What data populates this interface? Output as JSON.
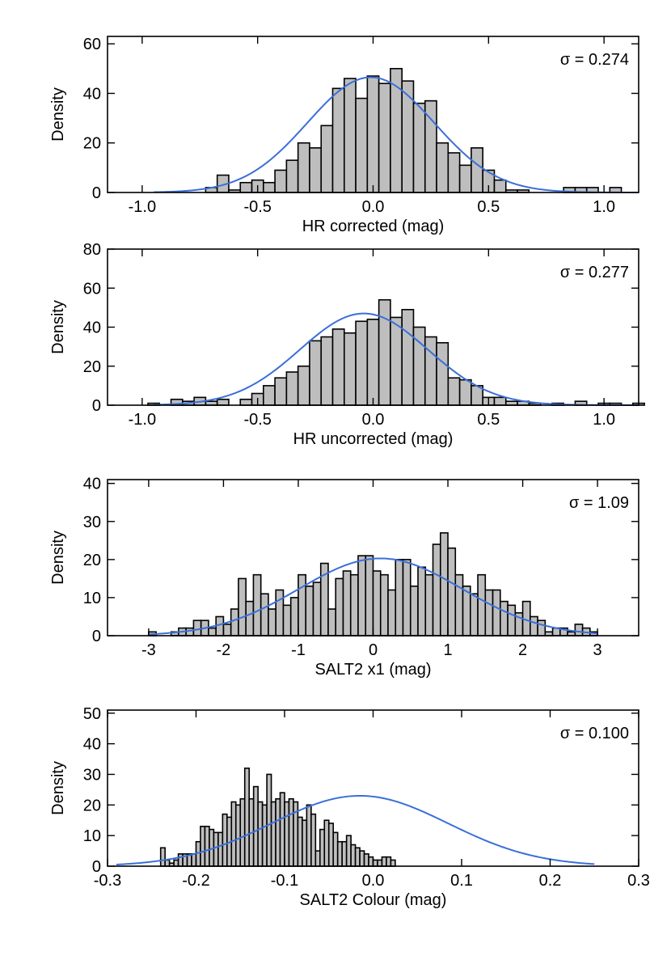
{
  "colors": {
    "bar_fill": "#bebebe",
    "bar_stroke": "#000000",
    "fit_line": "#3b6fd8"
  },
  "chart_data": [
    {
      "type": "bar",
      "xlabel": "HR corrected (mag)",
      "ylabel": "Density",
      "annotation": "σ = 0.274",
      "xlim": [
        -1.15,
        1.15
      ],
      "ylim": [
        0,
        63
      ],
      "xticks": [
        -1.0,
        -0.5,
        0.0,
        0.5,
        1.0
      ],
      "xtick_labels": [
        "-1.0",
        "-0.5",
        "0.0",
        "0.5",
        "1.0"
      ],
      "yticks": [
        0,
        20,
        40,
        60
      ],
      "ytick_labels": [
        "0",
        "20",
        "40",
        "60"
      ],
      "bin_start": -0.725,
      "bin_width": 0.05,
      "values": [
        2,
        7,
        1,
        4,
        5,
        4,
        9,
        13,
        20,
        18,
        27,
        42,
        46,
        38,
        47,
        44,
        50,
        45,
        36,
        37,
        20,
        16,
        11,
        18,
        9,
        5,
        1,
        1,
        0,
        0,
        0,
        2,
        2,
        2,
        0,
        2
      ],
      "fit": {
        "mean": -0.01,
        "sigma": 0.274,
        "peak": 46.5,
        "range": [
          -0.95,
          1.15
        ]
      }
    },
    {
      "type": "bar",
      "xlabel": "HR uncorrected (mag)",
      "ylabel": "Density",
      "annotation": "σ = 0.277",
      "xlim": [
        -1.15,
        1.15
      ],
      "ylim": [
        0,
        80
      ],
      "xticks": [
        -1.0,
        -0.5,
        0.0,
        0.5,
        1.0
      ],
      "xtick_labels": [
        "-1.0",
        "-0.5",
        "0.0",
        "0.5",
        "1.0"
      ],
      "yticks": [
        0,
        20,
        40,
        60,
        80
      ],
      "ytick_labels": [
        "0",
        "20",
        "40",
        "60",
        "80"
      ],
      "bin_start": -0.975,
      "bin_width": 0.05,
      "values": [
        1,
        0,
        3,
        2,
        4,
        2,
        3,
        0,
        3,
        6,
        10,
        14,
        17,
        20,
        33,
        35,
        39,
        37,
        43,
        44,
        54,
        45,
        49,
        40,
        35,
        32,
        14,
        13,
        10,
        4,
        4,
        2,
        2,
        1,
        0,
        1,
        0,
        2,
        0,
        1,
        1,
        0,
        1
      ],
      "fit": {
        "mean": -0.04,
        "sigma": 0.277,
        "peak": 47,
        "range": [
          -0.95,
          1.15
        ]
      }
    },
    {
      "type": "bar",
      "xlabel": "SALT2 x1 (mag)",
      "ylabel": "Density",
      "annotation": "σ =  1.09",
      "xlim": [
        -3.55,
        3.55
      ],
      "ylim": [
        0,
        41
      ],
      "xticks": [
        -3,
        -2,
        -1,
        0,
        1,
        2,
        3
      ],
      "xtick_labels": [
        "-3",
        "-2",
        "-1",
        "0",
        "1",
        "2",
        "3"
      ],
      "yticks": [
        0,
        10,
        20,
        30,
        40
      ],
      "ytick_labels": [
        "0",
        "10",
        "20",
        "30",
        "40"
      ],
      "bin_start": -3.0,
      "bin_width": 0.1,
      "values": [
        1,
        0,
        0,
        1,
        2,
        2,
        4,
        4,
        2,
        5,
        3,
        7,
        15,
        9,
        16,
        11,
        7,
        12,
        8,
        10,
        16,
        13,
        14,
        19,
        7,
        15,
        17,
        16,
        21,
        21,
        17,
        16,
        12,
        20,
        20,
        13,
        18,
        16,
        24,
        27,
        23,
        16,
        13,
        11,
        16,
        12,
        12,
        9,
        8,
        6,
        9,
        5,
        4,
        1,
        2,
        2,
        1,
        3,
        2,
        1
      ],
      "fit": {
        "mean": 0.1,
        "sigma": 1.09,
        "peak": 20.3,
        "range": [
          -3.0,
          3.0
        ]
      }
    },
    {
      "type": "bar",
      "xlabel": "SALT2 Colour (mag)",
      "ylabel": "Density",
      "annotation": "σ  = 0.100",
      "xlim": [
        -0.3,
        0.3
      ],
      "ylim": [
        0,
        51
      ],
      "xticks": [
        -0.3,
        -0.2,
        -0.1,
        0.0,
        0.1,
        0.2,
        0.3
      ],
      "xtick_labels": [
        "-0.3",
        "-0.2",
        "-0.1",
        "0.0",
        "0.1",
        "0.2",
        "0.3"
      ],
      "yticks": [
        0,
        10,
        20,
        30,
        40,
        50
      ],
      "ytick_labels": [
        "0",
        "10",
        "20",
        "30",
        "40",
        "50"
      ],
      "bin_start": -0.24,
      "bin_width": 0.005,
      "values": [
        6,
        2,
        1,
        2,
        4,
        4,
        4,
        4,
        8,
        13,
        13,
        12,
        11,
        11,
        17,
        16,
        21,
        20,
        22,
        32,
        22,
        26,
        21,
        20,
        30,
        21,
        22,
        24,
        21,
        22,
        21,
        16,
        15,
        20,
        17,
        5,
        12,
        15,
        14,
        11,
        8,
        8,
        10,
        7,
        6,
        5,
        4,
        3,
        2,
        2,
        3,
        3,
        2
      ],
      "fit": {
        "mean": -0.015,
        "sigma": 0.1,
        "peak": 23,
        "range": [
          -0.29,
          0.25
        ]
      }
    }
  ]
}
